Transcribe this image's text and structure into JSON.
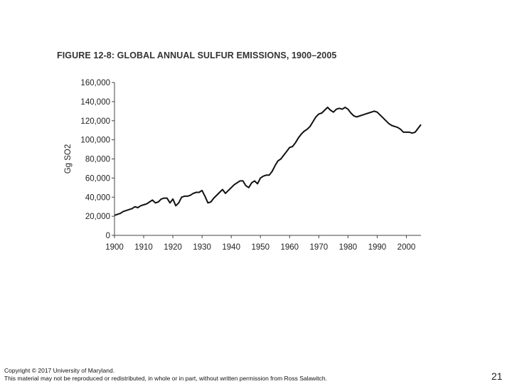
{
  "figure_title": "FIGURE 12-8: GLOBAL ANNUAL SULFUR EMISSIONS, 1900–2005",
  "footer": {
    "copyright_line1": "Copyright © 2017 University of Maryland.",
    "copyright_line2": "This material may not be reproduced or redistributed, in whole or in part, without written permission from Ross Salawitch.",
    "page_number": "21"
  },
  "chart_data": {
    "type": "line",
    "title": "FIGURE 12-8: GLOBAL ANNUAL SULFUR EMISSIONS, 1900–2005",
    "xlabel": "",
    "ylabel": "Gg SO2",
    "xlim": [
      1900,
      2005
    ],
    "ylim": [
      0,
      160000
    ],
    "x_ticks": [
      1900,
      1910,
      1920,
      1930,
      1940,
      1950,
      1960,
      1970,
      1980,
      1990,
      2000
    ],
    "y_ticks": [
      0,
      20000,
      40000,
      60000,
      80000,
      100000,
      120000,
      140000,
      160000
    ],
    "y_tick_labels": [
      "0",
      "20,000",
      "40,000",
      "60,000",
      "80,000",
      "100,000",
      "120,000",
      "140,000",
      "160,000"
    ],
    "grid": false,
    "line_color": "#111111",
    "series": [
      {
        "x": [
          1900,
          1901,
          1902,
          1903,
          1904,
          1905,
          1906,
          1907,
          1908,
          1909,
          1910,
          1911,
          1912,
          1913,
          1914,
          1915,
          1916,
          1917,
          1918,
          1919,
          1920,
          1921,
          1922,
          1923,
          1924,
          1925,
          1926,
          1927,
          1928,
          1929,
          1930,
          1931,
          1932,
          1933,
          1934,
          1935,
          1936,
          1937,
          1938,
          1939,
          1940,
          1941,
          1942,
          1943,
          1944,
          1945,
          1946,
          1947,
          1948,
          1949,
          1950,
          1951,
          1952,
          1953,
          1954,
          1955,
          1956,
          1957,
          1958,
          1959,
          1960,
          1961,
          1962,
          1963,
          1964,
          1965,
          1966,
          1967,
          1968,
          1969,
          1970,
          1971,
          1972,
          1973,
          1974,
          1975,
          1976,
          1977,
          1978,
          1979,
          1980,
          1981,
          1982,
          1983,
          1984,
          1985,
          1986,
          1987,
          1988,
          1989,
          1990,
          1991,
          1992,
          1993,
          1994,
          1995,
          1996,
          1997,
          1998,
          1999,
          2000,
          2001,
          2002,
          2003,
          2004,
          2005
        ],
        "values": [
          21000,
          22000,
          23000,
          25000,
          26000,
          27000,
          28000,
          30000,
          29000,
          31000,
          32000,
          33000,
          35000,
          37000,
          34000,
          35000,
          38000,
          39000,
          39000,
          34000,
          38000,
          31000,
          34000,
          40000,
          41000,
          41000,
          42000,
          44000,
          45000,
          45000,
          47000,
          41000,
          34000,
          35000,
          39000,
          42000,
          45000,
          48000,
          44000,
          47000,
          50000,
          53000,
          55000,
          57000,
          57000,
          52000,
          50000,
          55000,
          57000,
          54000,
          60000,
          62000,
          63000,
          63000,
          67000,
          73000,
          78000,
          80000,
          84000,
          88000,
          92000,
          93000,
          97000,
          102000,
          106000,
          109000,
          111000,
          114000,
          119000,
          124000,
          127000,
          128000,
          131000,
          134000,
          131000,
          129000,
          132000,
          133000,
          132000,
          134000,
          132000,
          128000,
          125000,
          124000,
          125000,
          126000,
          127000,
          128000,
          129000,
          130000,
          129000,
          126000,
          123000,
          120000,
          117000,
          115000,
          114000,
          113000,
          111000,
          108000,
          108000,
          108000,
          107000,
          108000,
          112000,
          116000
        ]
      }
    ]
  }
}
